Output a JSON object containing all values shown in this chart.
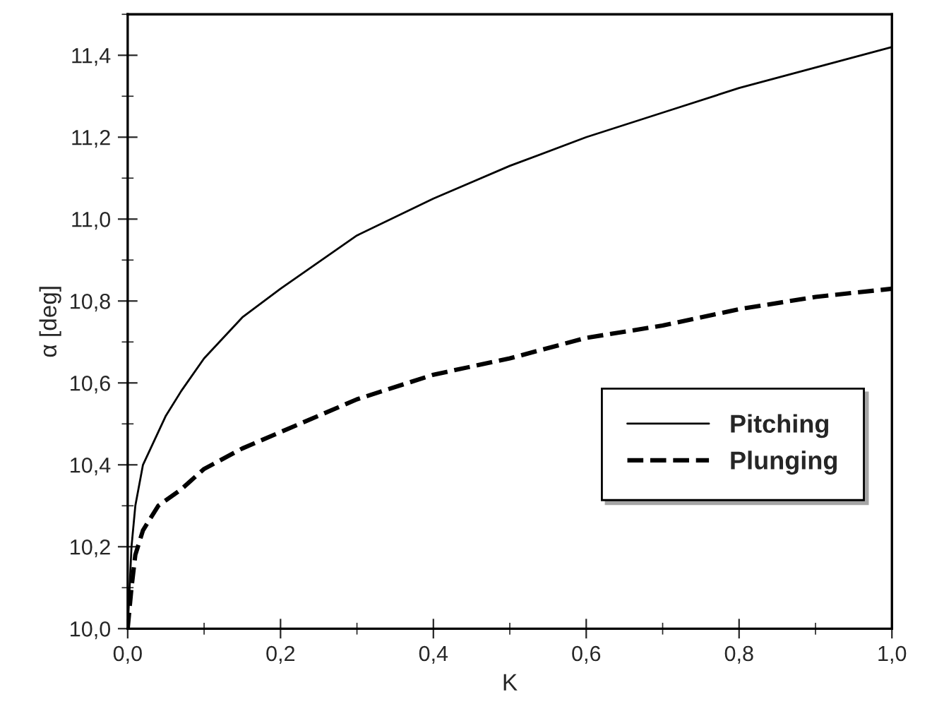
{
  "chart_data": {
    "type": "line",
    "xlabel": "K",
    "ylabel": "α [deg]",
    "xlim": [
      0,
      1
    ],
    "ylim": [
      10,
      11.5
    ],
    "xticks": [
      {
        "value": 0,
        "label": "0,0"
      },
      {
        "value": 0.2,
        "label": "0,2"
      },
      {
        "value": 0.4,
        "label": "0,4"
      },
      {
        "value": 0.6,
        "label": "0,6"
      },
      {
        "value": 0.8,
        "label": "0,8"
      },
      {
        "value": 1,
        "label": "1,0"
      }
    ],
    "yticks": [
      {
        "value": 10,
        "label": "10,0"
      },
      {
        "value": 10.2,
        "label": "10,2"
      },
      {
        "value": 10.4,
        "label": "10,4"
      },
      {
        "value": 10.6,
        "label": "10,6"
      },
      {
        "value": 10.8,
        "label": "10,8"
      },
      {
        "value": 11,
        "label": "11,0"
      },
      {
        "value": 11.2,
        "label": "11,2"
      },
      {
        "value": 11.4,
        "label": "11,4"
      }
    ],
    "grid": false,
    "legend": "right",
    "series": [
      {
        "name": "Pitching",
        "color": "#000000",
        "line_style": "solid",
        "x": [
          0,
          0.003,
          0.005,
          0.01,
          0.02,
          0.03,
          0.05,
          0.07,
          0.1,
          0.15,
          0.2,
          0.3,
          0.4,
          0.5,
          0.6,
          0.7,
          0.8,
          0.9,
          1.0
        ],
        "values": [
          10.0,
          10.12,
          10.2,
          10.3,
          10.4,
          10.44,
          10.52,
          10.58,
          10.66,
          10.76,
          10.83,
          10.96,
          11.05,
          11.13,
          11.2,
          11.26,
          11.32,
          11.37,
          11.42
        ]
      },
      {
        "name": "Plunging",
        "color": "#000000",
        "line_style": "dashed",
        "x": [
          0,
          0.005,
          0.01,
          0.02,
          0.04,
          0.07,
          0.1,
          0.15,
          0.2,
          0.3,
          0.4,
          0.5,
          0.6,
          0.7,
          0.8,
          0.9,
          1.0
        ],
        "values": [
          10.0,
          10.1,
          10.18,
          10.24,
          10.3,
          10.34,
          10.39,
          10.44,
          10.48,
          10.56,
          10.62,
          10.66,
          10.71,
          10.74,
          10.78,
          10.81,
          10.83
        ]
      }
    ]
  }
}
